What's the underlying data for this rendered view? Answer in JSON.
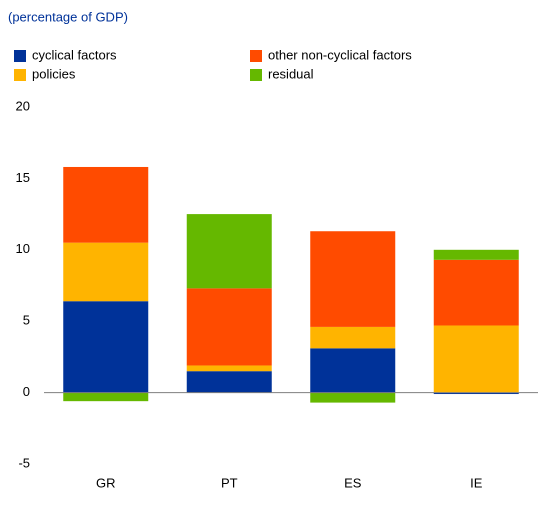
{
  "chart_data": {
    "type": "stacked-bar",
    "title": "(percentage of GDP)",
    "categories": [
      "GR",
      "PT",
      "ES",
      "IE"
    ],
    "series": [
      {
        "name": "cyclical factors",
        "color": "#003299",
        "values": [
          6.4,
          1.5,
          3.1,
          -0.1
        ]
      },
      {
        "name": "policies",
        "color": "#ffb400",
        "values": [
          4.1,
          0.4,
          1.5,
          4.7
        ]
      },
      {
        "name": "other non-cyclical factors",
        "color": "#ff4b00",
        "values": [
          5.3,
          5.4,
          6.7,
          4.6
        ]
      },
      {
        "name": "residual",
        "color": "#65b800",
        "values": [
          -0.6,
          5.2,
          -0.7,
          0.7
        ]
      }
    ],
    "ylim": [
      -5,
      20
    ],
    "yticks": [
      -5,
      0,
      5,
      10,
      15,
      20
    ],
    "grid": false
  }
}
